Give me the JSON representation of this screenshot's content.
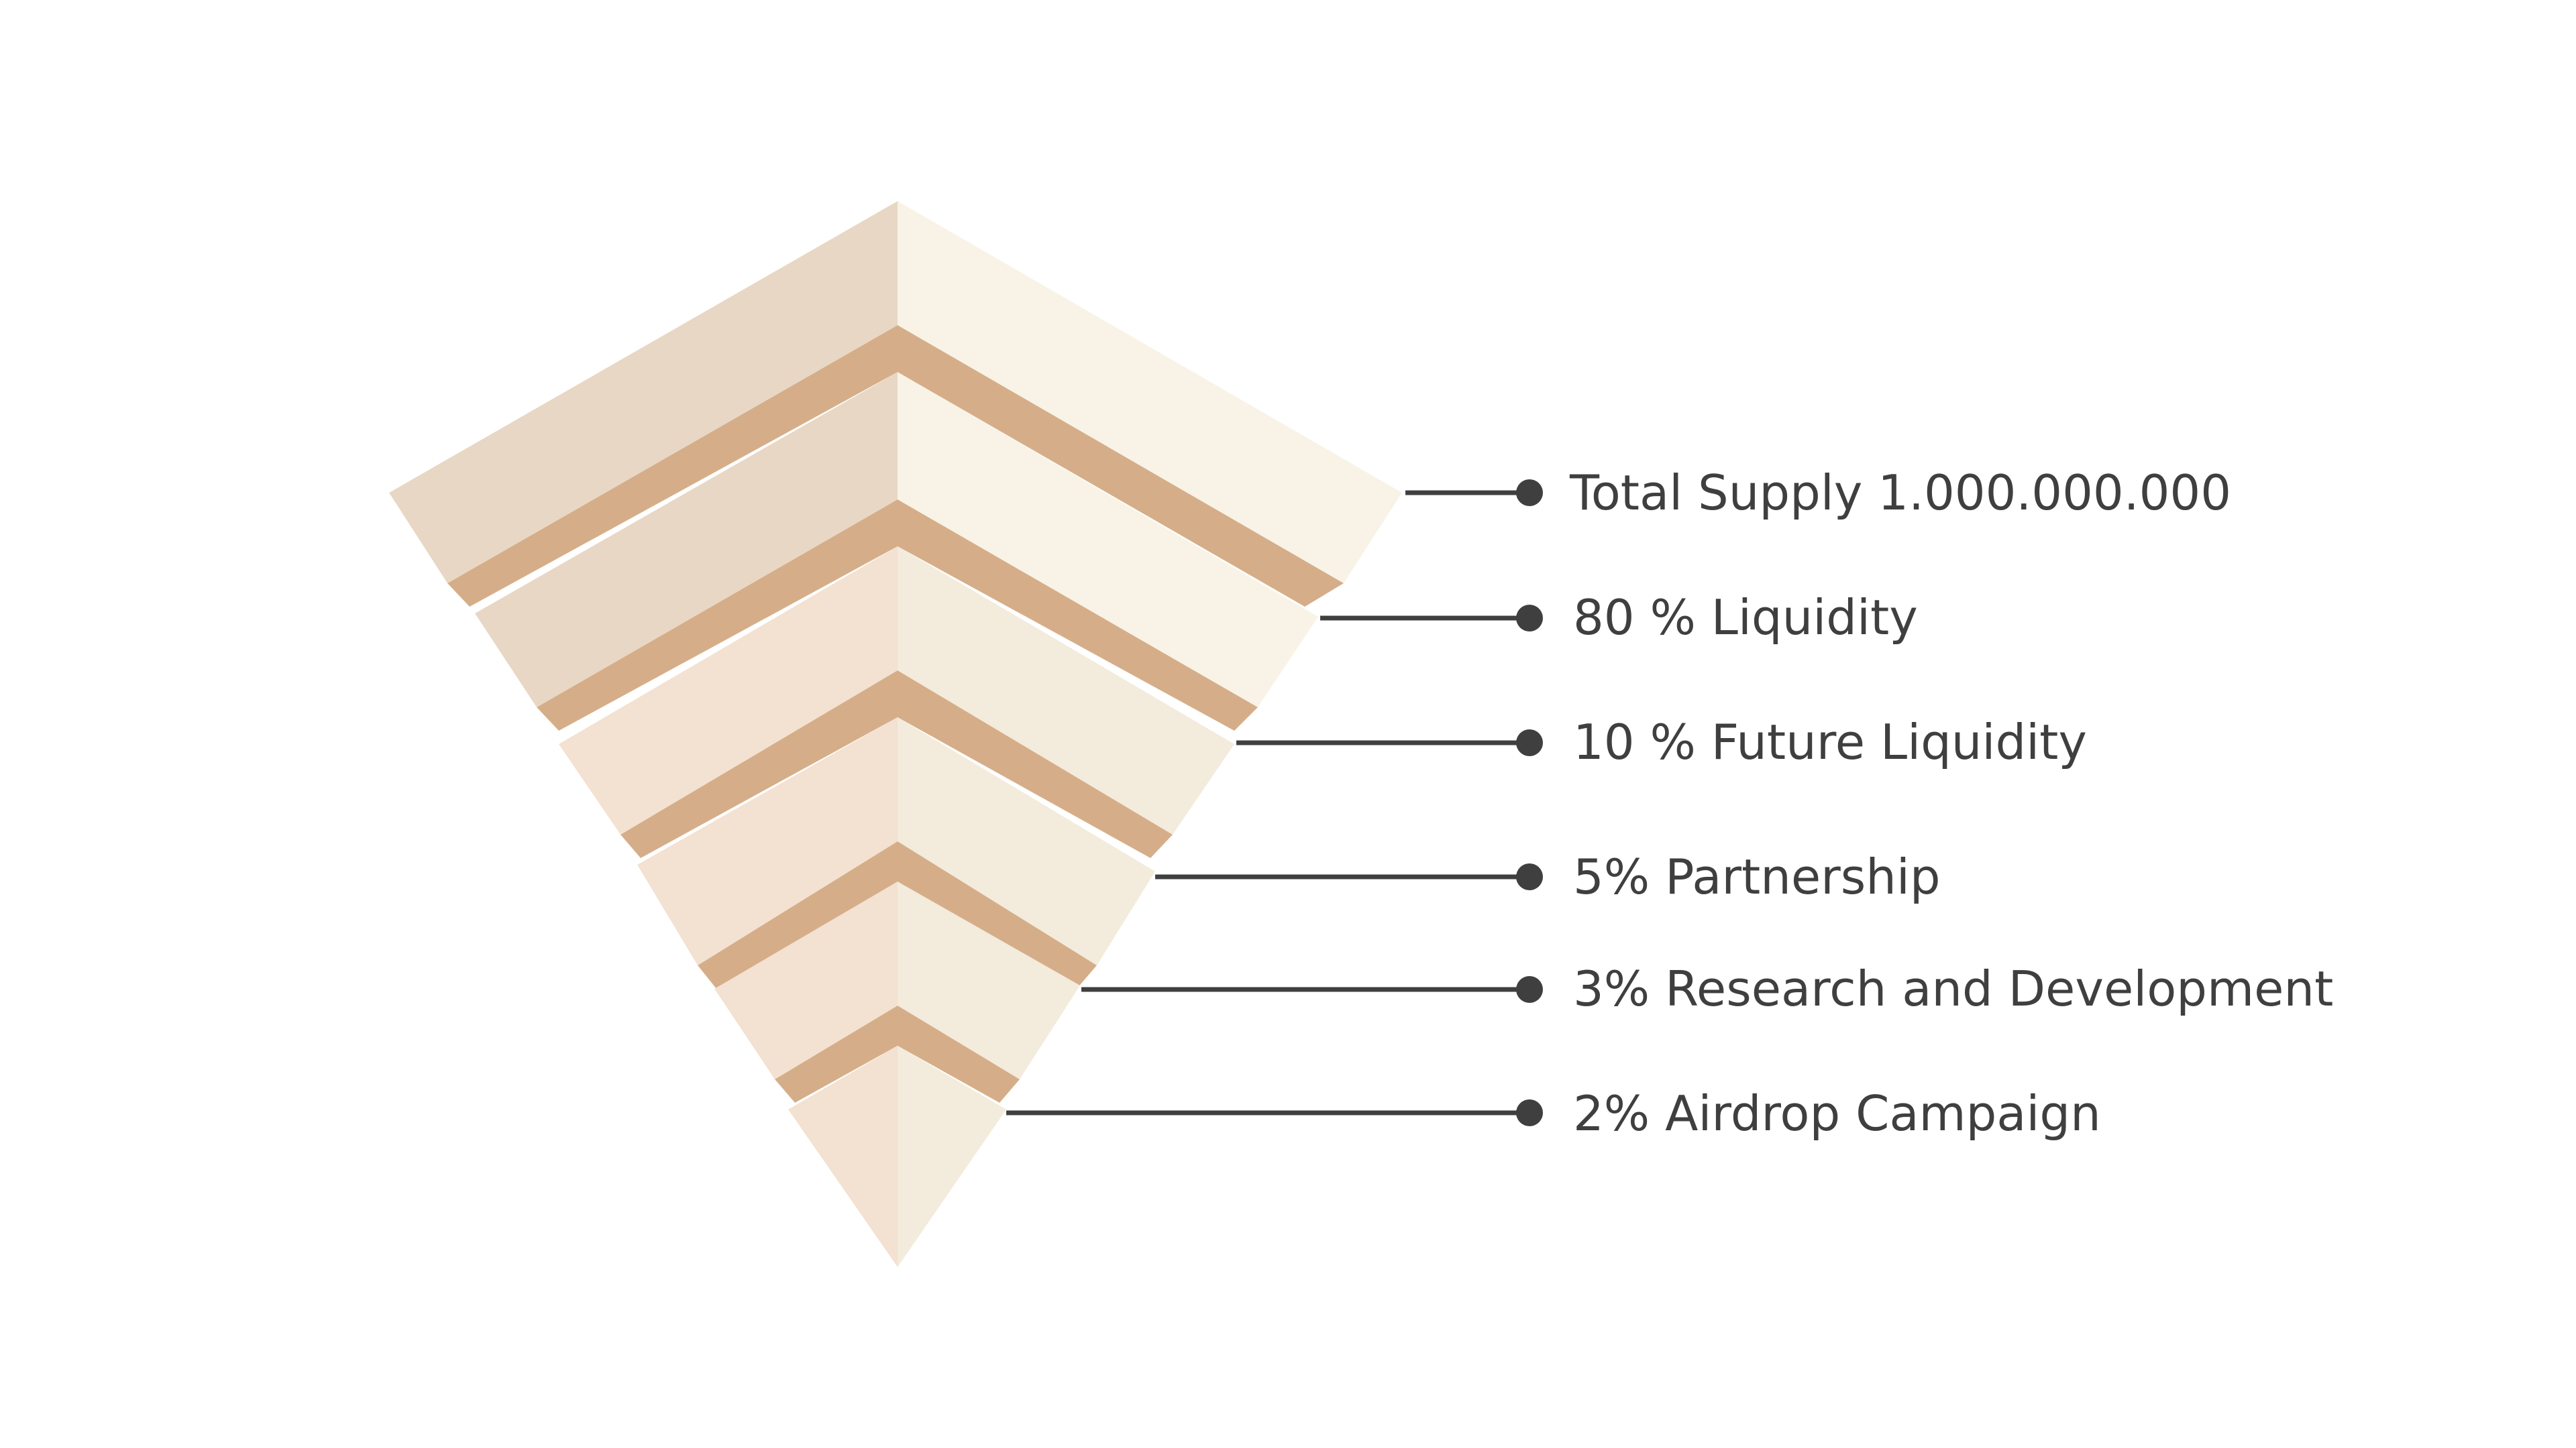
{
  "colors": {
    "background": "#ffffff",
    "band": "#d5ae89",
    "layer_left_top": "#e8d7c4",
    "layer_right_top": "#f8f3e6",
    "layer_left_low": "#f3e1d1",
    "layer_right_low": "#f3ebdc",
    "leader": "#3f3f3f",
    "text": "#3f3f3f"
  },
  "layers": [
    {
      "id": "total-supply",
      "label": "Total Supply 1.000.000.000"
    },
    {
      "id": "liquidity",
      "label": "80 % Liquidity"
    },
    {
      "id": "future-liquidity",
      "label": "10 % Future Liquidity"
    },
    {
      "id": "partnership",
      "label": "5% Partnership"
    },
    {
      "id": "research-development",
      "label": "3% Research and Development"
    },
    {
      "id": "airdrop-campaign",
      "label": "2% Airdrop Campaign"
    }
  ]
}
